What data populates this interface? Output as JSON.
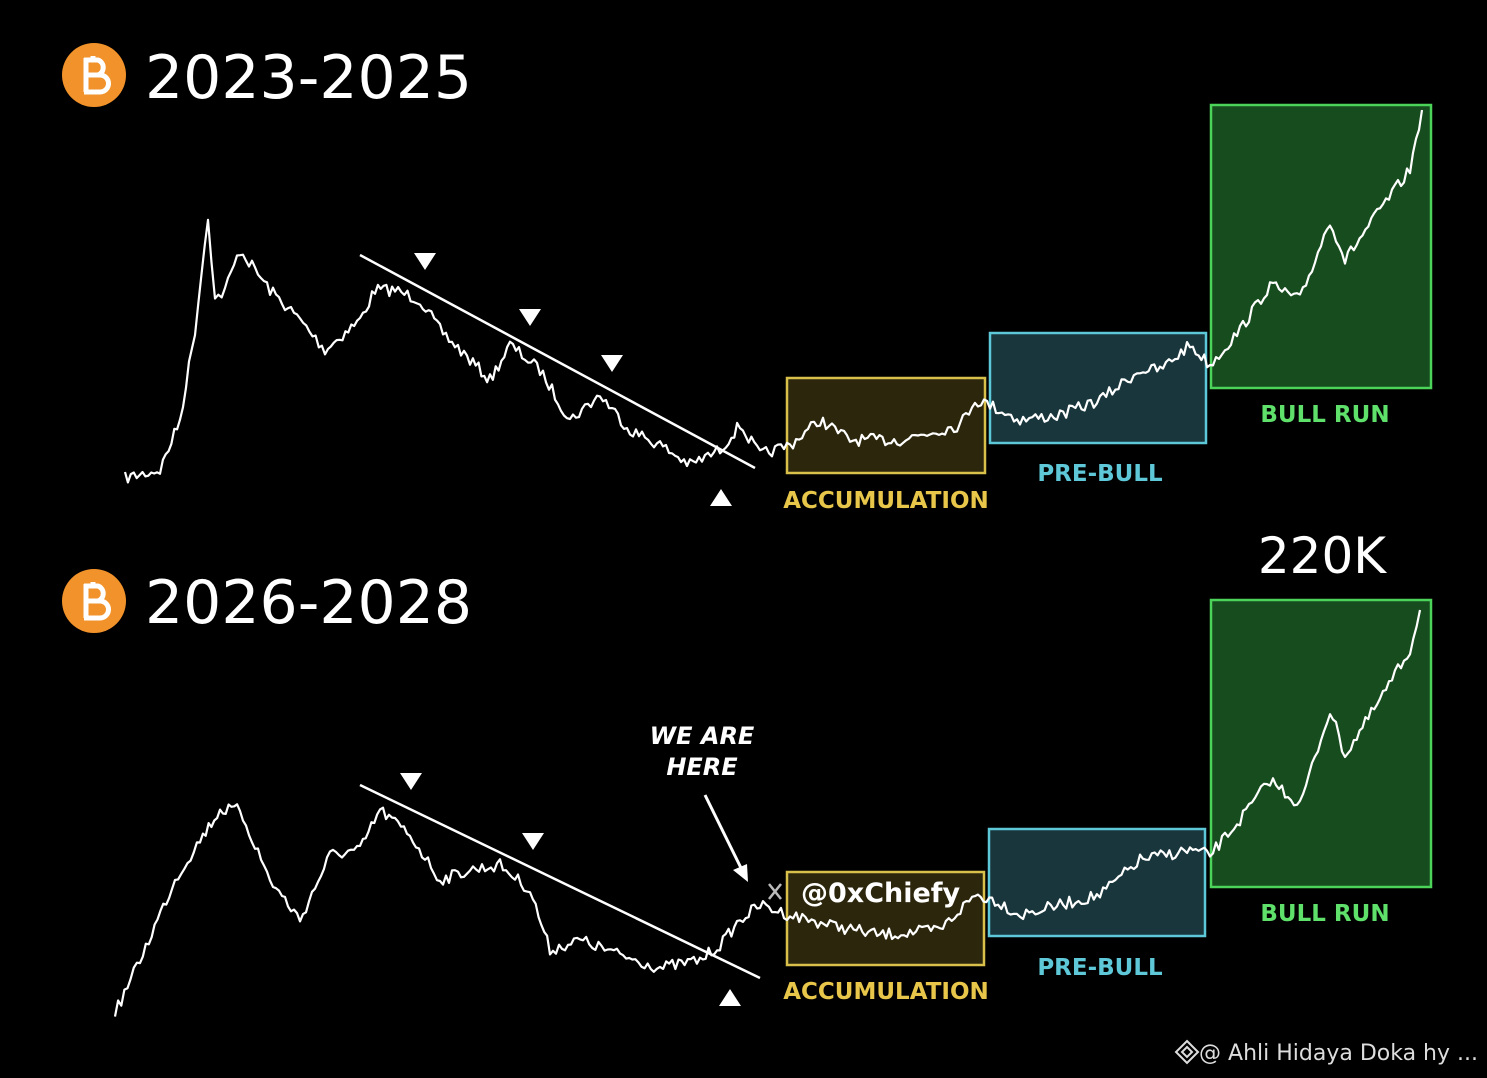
{
  "panels": [
    {
      "title": "2023-2025",
      "zones": [
        {
          "label": "ACCUMULATION"
        },
        {
          "label": "PRE-BULL"
        },
        {
          "label": "BULL RUN"
        }
      ]
    },
    {
      "title": "2026-2028",
      "annotation": [
        "WE ARE",
        "HERE"
      ],
      "target": "220K",
      "handle": "@0xChiefy",
      "zones": [
        {
          "label": "ACCUMULATION"
        },
        {
          "label": "PRE-BULL"
        },
        {
          "label": "BULL RUN"
        }
      ]
    }
  ],
  "watermark": "@ Ahli Hidaya Doka hy ..."
}
